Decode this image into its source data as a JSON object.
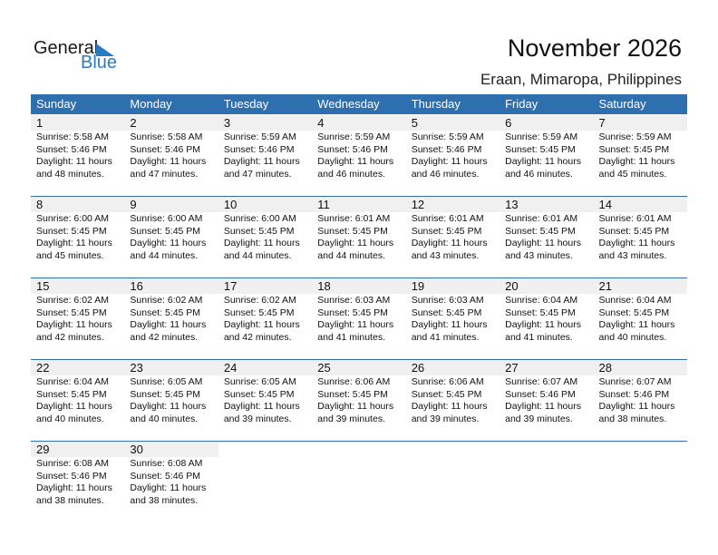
{
  "logo": {
    "general": "General",
    "blue": "Blue"
  },
  "title": "November 2026",
  "location": "Eraan, Mimaropa, Philippines",
  "colors": {
    "header": "#2e6fb0",
    "day_bg": "#f0f0f0",
    "logo_blue": "#2a7bc4"
  },
  "weekdays": [
    "Sunday",
    "Monday",
    "Tuesday",
    "Wednesday",
    "Thursday",
    "Friday",
    "Saturday"
  ],
  "weeks": [
    [
      {
        "day": "1",
        "sunrise": "Sunrise: 5:58 AM",
        "sunset": "Sunset: 5:46 PM",
        "daylight": "Daylight: 11 hours",
        "minutes": "and 48 minutes."
      },
      {
        "day": "2",
        "sunrise": "Sunrise: 5:58 AM",
        "sunset": "Sunset: 5:46 PM",
        "daylight": "Daylight: 11 hours",
        "minutes": "and 47 minutes."
      },
      {
        "day": "3",
        "sunrise": "Sunrise: 5:59 AM",
        "sunset": "Sunset: 5:46 PM",
        "daylight": "Daylight: 11 hours",
        "minutes": "and 47 minutes."
      },
      {
        "day": "4",
        "sunrise": "Sunrise: 5:59 AM",
        "sunset": "Sunset: 5:46 PM",
        "daylight": "Daylight: 11 hours",
        "minutes": "and 46 minutes."
      },
      {
        "day": "5",
        "sunrise": "Sunrise: 5:59 AM",
        "sunset": "Sunset: 5:46 PM",
        "daylight": "Daylight: 11 hours",
        "minutes": "and 46 minutes."
      },
      {
        "day": "6",
        "sunrise": "Sunrise: 5:59 AM",
        "sunset": "Sunset: 5:45 PM",
        "daylight": "Daylight: 11 hours",
        "minutes": "and 46 minutes."
      },
      {
        "day": "7",
        "sunrise": "Sunrise: 5:59 AM",
        "sunset": "Sunset: 5:45 PM",
        "daylight": "Daylight: 11 hours",
        "minutes": "and 45 minutes."
      }
    ],
    [
      {
        "day": "8",
        "sunrise": "Sunrise: 6:00 AM",
        "sunset": "Sunset: 5:45 PM",
        "daylight": "Daylight: 11 hours",
        "minutes": "and 45 minutes."
      },
      {
        "day": "9",
        "sunrise": "Sunrise: 6:00 AM",
        "sunset": "Sunset: 5:45 PM",
        "daylight": "Daylight: 11 hours",
        "minutes": "and 44 minutes."
      },
      {
        "day": "10",
        "sunrise": "Sunrise: 6:00 AM",
        "sunset": "Sunset: 5:45 PM",
        "daylight": "Daylight: 11 hours",
        "minutes": "and 44 minutes."
      },
      {
        "day": "11",
        "sunrise": "Sunrise: 6:01 AM",
        "sunset": "Sunset: 5:45 PM",
        "daylight": "Daylight: 11 hours",
        "minutes": "and 44 minutes."
      },
      {
        "day": "12",
        "sunrise": "Sunrise: 6:01 AM",
        "sunset": "Sunset: 5:45 PM",
        "daylight": "Daylight: 11 hours",
        "minutes": "and 43 minutes."
      },
      {
        "day": "13",
        "sunrise": "Sunrise: 6:01 AM",
        "sunset": "Sunset: 5:45 PM",
        "daylight": "Daylight: 11 hours",
        "minutes": "and 43 minutes."
      },
      {
        "day": "14",
        "sunrise": "Sunrise: 6:01 AM",
        "sunset": "Sunset: 5:45 PM",
        "daylight": "Daylight: 11 hours",
        "minutes": "and 43 minutes."
      }
    ],
    [
      {
        "day": "15",
        "sunrise": "Sunrise: 6:02 AM",
        "sunset": "Sunset: 5:45 PM",
        "daylight": "Daylight: 11 hours",
        "minutes": "and 42 minutes."
      },
      {
        "day": "16",
        "sunrise": "Sunrise: 6:02 AM",
        "sunset": "Sunset: 5:45 PM",
        "daylight": "Daylight: 11 hours",
        "minutes": "and 42 minutes."
      },
      {
        "day": "17",
        "sunrise": "Sunrise: 6:02 AM",
        "sunset": "Sunset: 5:45 PM",
        "daylight": "Daylight: 11 hours",
        "minutes": "and 42 minutes."
      },
      {
        "day": "18",
        "sunrise": "Sunrise: 6:03 AM",
        "sunset": "Sunset: 5:45 PM",
        "daylight": "Daylight: 11 hours",
        "minutes": "and 41 minutes."
      },
      {
        "day": "19",
        "sunrise": "Sunrise: 6:03 AM",
        "sunset": "Sunset: 5:45 PM",
        "daylight": "Daylight: 11 hours",
        "minutes": "and 41 minutes."
      },
      {
        "day": "20",
        "sunrise": "Sunrise: 6:04 AM",
        "sunset": "Sunset: 5:45 PM",
        "daylight": "Daylight: 11 hours",
        "minutes": "and 41 minutes."
      },
      {
        "day": "21",
        "sunrise": "Sunrise: 6:04 AM",
        "sunset": "Sunset: 5:45 PM",
        "daylight": "Daylight: 11 hours",
        "minutes": "and 40 minutes."
      }
    ],
    [
      {
        "day": "22",
        "sunrise": "Sunrise: 6:04 AM",
        "sunset": "Sunset: 5:45 PM",
        "daylight": "Daylight: 11 hours",
        "minutes": "and 40 minutes."
      },
      {
        "day": "23",
        "sunrise": "Sunrise: 6:05 AM",
        "sunset": "Sunset: 5:45 PM",
        "daylight": "Daylight: 11 hours",
        "minutes": "and 40 minutes."
      },
      {
        "day": "24",
        "sunrise": "Sunrise: 6:05 AM",
        "sunset": "Sunset: 5:45 PM",
        "daylight": "Daylight: 11 hours",
        "minutes": "and 39 minutes."
      },
      {
        "day": "25",
        "sunrise": "Sunrise: 6:06 AM",
        "sunset": "Sunset: 5:45 PM",
        "daylight": "Daylight: 11 hours",
        "minutes": "and 39 minutes."
      },
      {
        "day": "26",
        "sunrise": "Sunrise: 6:06 AM",
        "sunset": "Sunset: 5:45 PM",
        "daylight": "Daylight: 11 hours",
        "minutes": "and 39 minutes."
      },
      {
        "day": "27",
        "sunrise": "Sunrise: 6:07 AM",
        "sunset": "Sunset: 5:46 PM",
        "daylight": "Daylight: 11 hours",
        "minutes": "and 39 minutes."
      },
      {
        "day": "28",
        "sunrise": "Sunrise: 6:07 AM",
        "sunset": "Sunset: 5:46 PM",
        "daylight": "Daylight: 11 hours",
        "minutes": "and 38 minutes."
      }
    ],
    [
      {
        "day": "29",
        "sunrise": "Sunrise: 6:08 AM",
        "sunset": "Sunset: 5:46 PM",
        "daylight": "Daylight: 11 hours",
        "minutes": "and 38 minutes."
      },
      {
        "day": "30",
        "sunrise": "Sunrise: 6:08 AM",
        "sunset": "Sunset: 5:46 PM",
        "daylight": "Daylight: 11 hours",
        "minutes": "and 38 minutes."
      },
      null,
      null,
      null,
      null,
      null
    ]
  ]
}
